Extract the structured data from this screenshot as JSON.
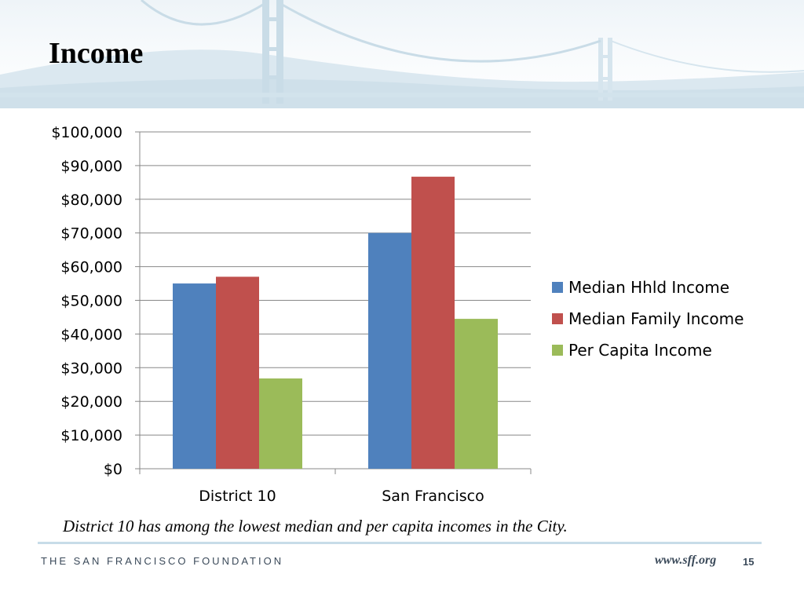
{
  "slide": {
    "title": "Income",
    "caption": "District 10 has among the lowest median and per capita incomes in the City.",
    "footer_org": "THE SAN FRANCISCO FOUNDATION",
    "footer_url": "www.sff.org",
    "page_number": "15"
  },
  "chart_data": {
    "type": "bar",
    "categories": [
      "District 10",
      "San Francisco"
    ],
    "series": [
      {
        "name": "Median Hhld Income",
        "color": "#4f81bd",
        "values": [
          55000,
          70000
        ]
      },
      {
        "name": "Median Family Income",
        "color": "#c0504d",
        "values": [
          57000,
          86700
        ]
      },
      {
        "name": "Per Capita Income",
        "color": "#9bbb59",
        "values": [
          26800,
          44500
        ]
      }
    ],
    "y_ticks": [
      "$0",
      "$10,000",
      "$20,000",
      "$30,000",
      "$40,000",
      "$50,000",
      "$60,000",
      "$70,000",
      "$80,000",
      "$90,000",
      "$100,000"
    ],
    "ylim": [
      0,
      100000
    ],
    "grid": true,
    "legend_position": "right"
  }
}
